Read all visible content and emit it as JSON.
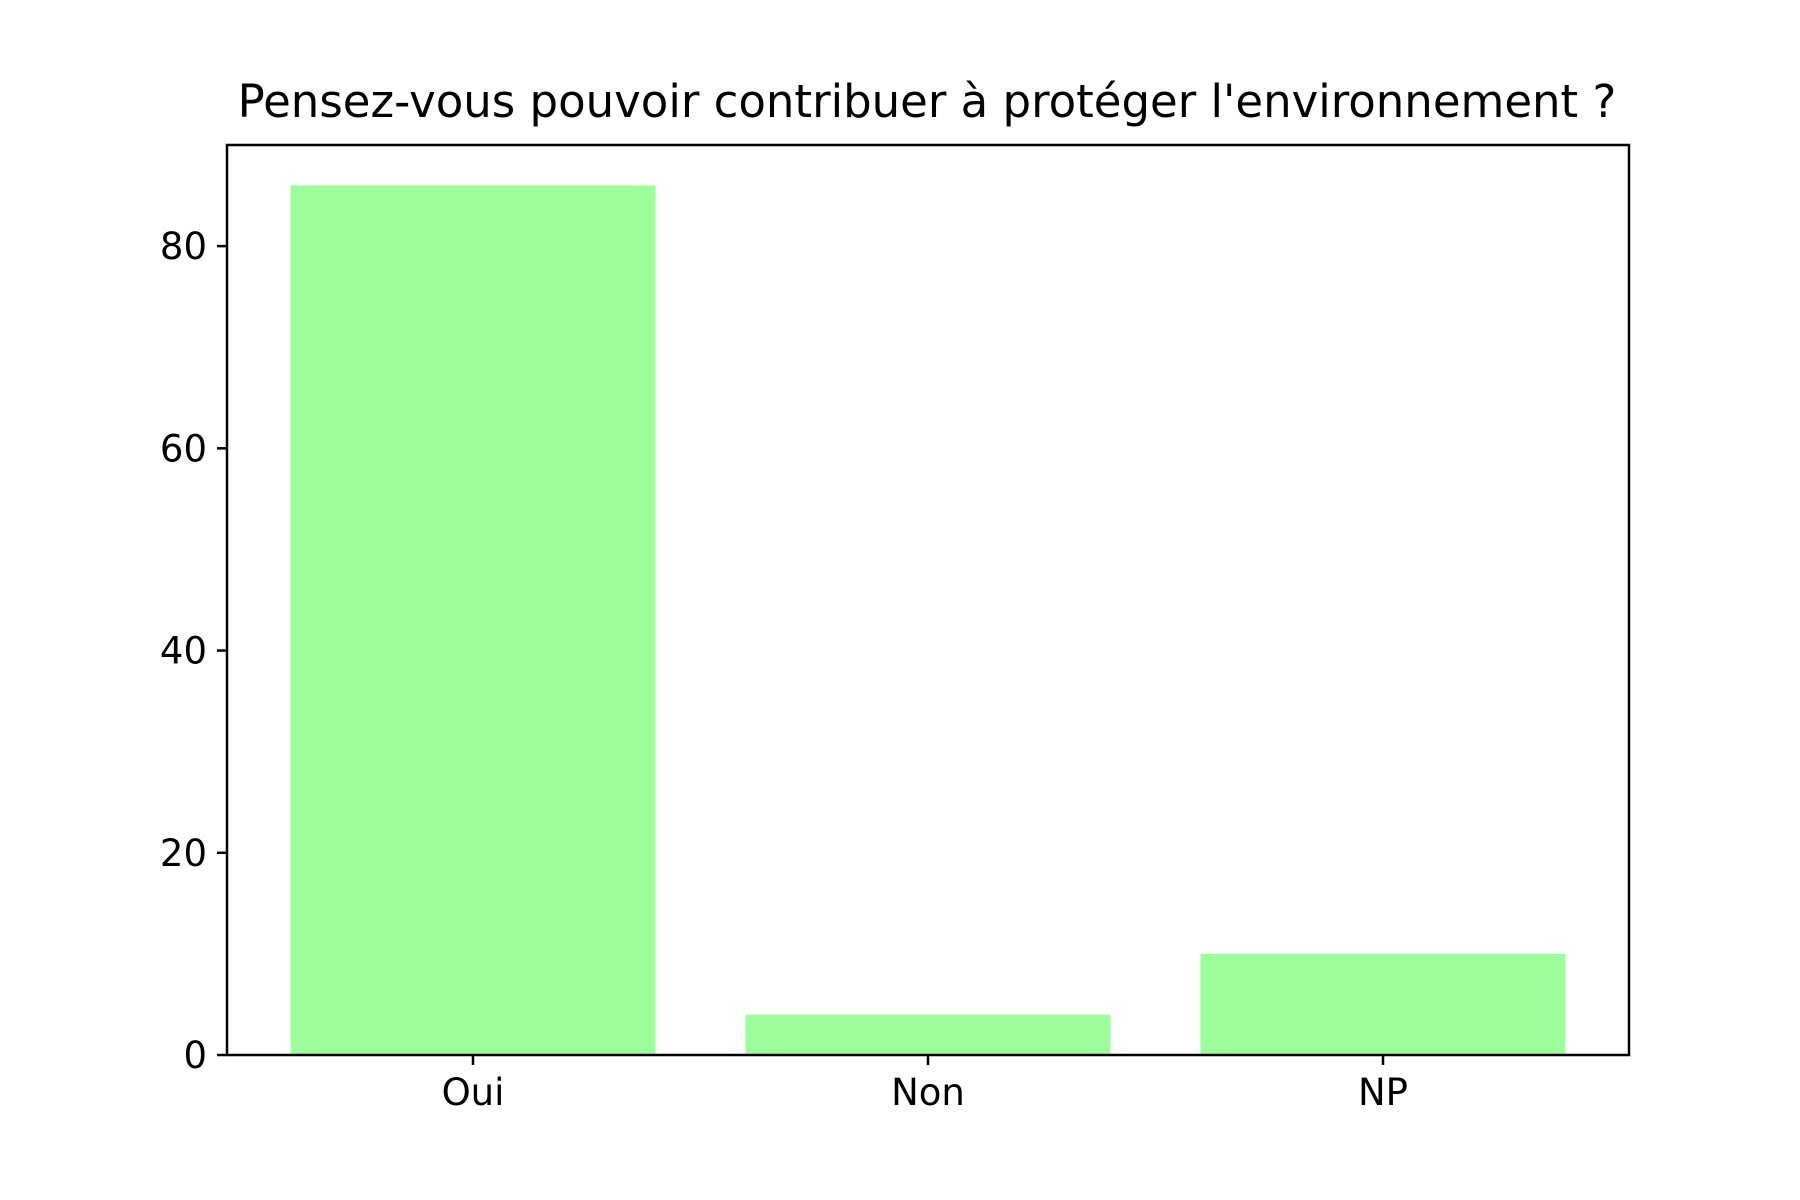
{
  "chart_data": {
    "type": "bar",
    "title": "Pensez-vous pouvoir contribuer à protéger l'environnement ?",
    "xlabel": "",
    "ylabel": "",
    "categories": [
      "Oui",
      "Non",
      "NP"
    ],
    "values": [
      86,
      4,
      10
    ],
    "ylim": [
      0,
      90
    ],
    "yticks": [
      0,
      20,
      40,
      60,
      80
    ],
    "bar_color": "#9dff9b",
    "grid": false,
    "legend": "none"
  }
}
